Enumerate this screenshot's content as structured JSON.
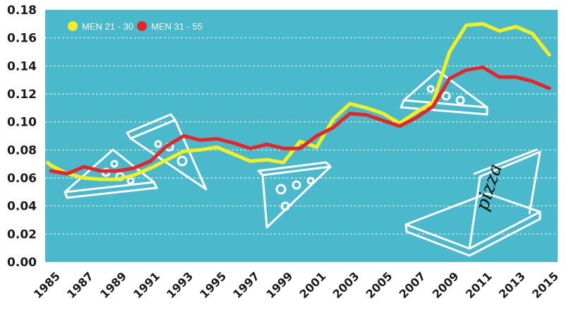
{
  "chart_data": {
    "type": "line",
    "title": "",
    "xlabel": "",
    "ylabel": "",
    "x_ticks": [
      "1985",
      "1987",
      "1989",
      "1991",
      "1993",
      "1995",
      "1997",
      "1999",
      "2001",
      "2003",
      "2005",
      "2007",
      "2009",
      "2011",
      "2013",
      "2015"
    ],
    "y_ticks": [
      "0.00",
      "0.02",
      "0.04",
      "0.06",
      "0.08",
      "0.10",
      "0.12",
      "0.14",
      "0.16",
      "0.18"
    ],
    "ylim": [
      0,
      0.18
    ],
    "xlim": [
      1985,
      2015
    ],
    "grid": true,
    "legend_position": "top-left",
    "background_color": "#4ab9cc",
    "series": [
      {
        "name": "MEN 21 - 30",
        "color": "#f2ef22",
        "x": [
          1984.8,
          1985,
          1986,
          1987,
          1988,
          1989,
          1990,
          1991,
          1992,
          1993,
          1994,
          1995,
          1996,
          1997,
          1998,
          1999,
          2000,
          2001,
          2002,
          2003,
          2004,
          2005,
          2006,
          2007,
          2008,
          2009,
          2010,
          2011,
          2012,
          2013,
          2014,
          2015
        ],
        "y": [
          0.071,
          0.069,
          0.063,
          0.06,
          0.059,
          0.059,
          0.062,
          0.067,
          0.073,
          0.079,
          0.08,
          0.082,
          0.077,
          0.072,
          0.073,
          0.071,
          0.086,
          0.082,
          0.102,
          0.113,
          0.11,
          0.106,
          0.099,
          0.107,
          0.114,
          0.15,
          0.169,
          0.17,
          0.165,
          0.168,
          0.163,
          0.148
        ]
      },
      {
        "name": "MEN 31 - 55",
        "color": "#e52528",
        "x": [
          1985,
          1986,
          1987,
          1988,
          1989,
          1990,
          1991,
          1992,
          1993,
          1994,
          1995,
          1996,
          1997,
          1998,
          1999,
          2000,
          2001,
          2002,
          2003,
          2004,
          2005,
          2006,
          2007,
          2008,
          2009,
          2010,
          2011,
          2012,
          2013,
          2014,
          2015
        ],
        "y": [
          0.065,
          0.063,
          0.068,
          0.065,
          0.065,
          0.067,
          0.072,
          0.083,
          0.09,
          0.087,
          0.088,
          0.085,
          0.081,
          0.084,
          0.081,
          0.081,
          0.09,
          0.096,
          0.106,
          0.105,
          0.101,
          0.097,
          0.103,
          0.111,
          0.131,
          0.137,
          0.139,
          0.132,
          0.132,
          0.129,
          0.124
        ]
      }
    ]
  },
  "illustration": {
    "box_label": "pizza"
  }
}
